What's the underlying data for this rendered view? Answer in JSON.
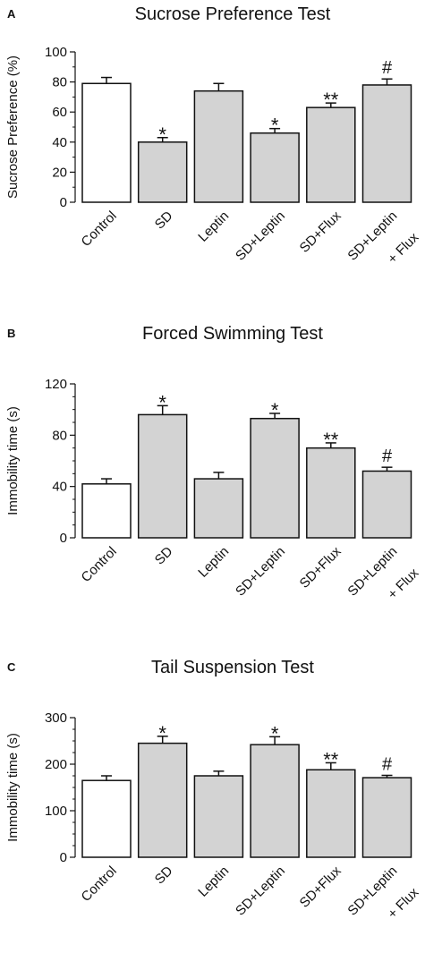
{
  "chart_data": [
    {
      "panel_label": "A",
      "type": "bar",
      "title": "Sucrose Preference Test",
      "ylabel": "Sucrose Preference (%)",
      "ylim": [
        0,
        100
      ],
      "yticks": [
        0,
        20,
        40,
        60,
        80,
        100
      ],
      "categories": [
        [
          "Control"
        ],
        [
          "SD"
        ],
        [
          "Leptin"
        ],
        [
          "SD+Leptin"
        ],
        [
          "SD+Flux"
        ],
        [
          "SD+Leptin",
          "+ Flux"
        ]
      ],
      "values": [
        79,
        40,
        74,
        46,
        63,
        78
      ],
      "errors": [
        4,
        3,
        5,
        3,
        3,
        4
      ],
      "annotations": [
        "",
        "*",
        "",
        "*",
        "**",
        "#"
      ],
      "colors": [
        "#ffffff",
        "#d3d3d3",
        "#d3d3d3",
        "#d3d3d3",
        "#d3d3d3",
        "#d3d3d3"
      ]
    },
    {
      "panel_label": "B",
      "type": "bar",
      "title": "Forced Swimming Test",
      "ylabel": "Immobility time (s)",
      "ylim": [
        0,
        120
      ],
      "yticks": [
        0,
        40,
        80,
        120
      ],
      "categories": [
        [
          "Control"
        ],
        [
          "SD"
        ],
        [
          "Leptin"
        ],
        [
          "SD+Leptin"
        ],
        [
          "SD+Flux"
        ],
        [
          "SD+Leptin",
          "+ Flux"
        ]
      ],
      "values": [
        42,
        96,
        46,
        93,
        70,
        52
      ],
      "errors": [
        4,
        7,
        5,
        4,
        4,
        3
      ],
      "annotations": [
        "",
        "*",
        "",
        "*",
        "**",
        "#"
      ],
      "colors": [
        "#ffffff",
        "#d3d3d3",
        "#d3d3d3",
        "#d3d3d3",
        "#d3d3d3",
        "#d3d3d3"
      ]
    },
    {
      "panel_label": "C",
      "type": "bar",
      "title": "Tail Suspension Test",
      "ylabel": "Immobility time (s)",
      "ylim": [
        0,
        300
      ],
      "yticks": [
        0,
        100,
        200,
        300
      ],
      "categories": [
        [
          "Control"
        ],
        [
          "SD"
        ],
        [
          "Leptin"
        ],
        [
          "SD+Leptin"
        ],
        [
          "SD+Flux"
        ],
        [
          "SD+Leptin",
          "+ Flux"
        ]
      ],
      "values": [
        165,
        245,
        175,
        242,
        188,
        171
      ],
      "errors": [
        10,
        15,
        10,
        17,
        15,
        5
      ],
      "annotations": [
        "",
        "*",
        "",
        "*",
        "**",
        "#"
      ],
      "colors": [
        "#ffffff",
        "#d3d3d3",
        "#d3d3d3",
        "#d3d3d3",
        "#d3d3d3",
        "#d3d3d3"
      ]
    }
  ]
}
